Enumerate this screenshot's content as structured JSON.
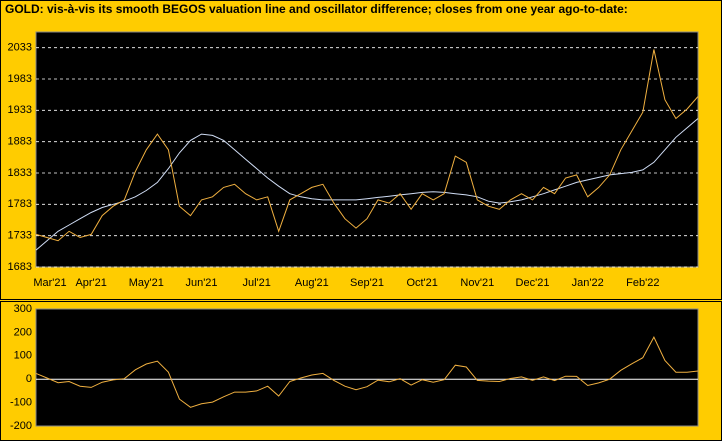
{
  "chart_data": [
    {
      "type": "line",
      "title": "GOLD:  vis-à-vis its smooth BEGOS valuation line and oscillator difference; closes from one year ago-to-date:",
      "categories": [
        "Mar'21",
        null,
        null,
        null,
        null,
        "Apr'21",
        null,
        null,
        null,
        null,
        "May'21",
        null,
        null,
        null,
        null,
        "Jun'21",
        null,
        null,
        null,
        null,
        "Jul'21",
        null,
        null,
        null,
        null,
        "Aug'21",
        null,
        null,
        null,
        null,
        "Sep'21",
        null,
        null,
        null,
        null,
        "Oct'21",
        null,
        null,
        null,
        null,
        "Nov'21",
        null,
        null,
        null,
        null,
        "Dec'21",
        null,
        null,
        null,
        null,
        "Jan'22",
        null,
        null,
        null,
        null,
        "Feb'22",
        null,
        null,
        null,
        null,
        null
      ],
      "series": [
        {
          "color": "#f0b040",
          "values": [
            1735,
            1730,
            1725,
            1740,
            1730,
            1735,
            1765,
            1780,
            1790,
            1835,
            1870,
            1895,
            1870,
            1780,
            1765,
            1790,
            1795,
            1810,
            1815,
            1800,
            1790,
            1795,
            1740,
            1790,
            1800,
            1810,
            1815,
            1785,
            1760,
            1745,
            1760,
            1790,
            1785,
            1800,
            1775,
            1800,
            1790,
            1800,
            1860,
            1850,
            1790,
            1780,
            1775,
            1790,
            1800,
            1790,
            1810,
            1800,
            1825,
            1830,
            1795,
            1810,
            1830,
            1870,
            1900,
            1930,
            2030,
            1950,
            1920,
            1935,
            1955
          ]
        },
        {
          "color": "#d0ddf5",
          "values": [
            1710,
            1725,
            1740,
            1750,
            1760,
            1770,
            1778,
            1783,
            1788,
            1795,
            1805,
            1818,
            1840,
            1865,
            1885,
            1895,
            1893,
            1885,
            1870,
            1855,
            1840,
            1825,
            1812,
            1800,
            1795,
            1792,
            1790,
            1790,
            1790,
            1790,
            1792,
            1794,
            1796,
            1798,
            1800,
            1802,
            1803,
            1802,
            1800,
            1798,
            1795,
            1788,
            1785,
            1787,
            1790,
            1795,
            1800,
            1806,
            1812,
            1818,
            1822,
            1826,
            1830,
            1832,
            1834,
            1838,
            1850,
            1870,
            1890,
            1905,
            1920
          ]
        }
      ],
      "ylim": [
        1683,
        2058
      ],
      "yticks": [
        1683,
        1733,
        1783,
        1833,
        1883,
        1933,
        1983,
        2033
      ],
      "grid": true
    },
    {
      "type": "line",
      "series": [
        {
          "color": "#f0b040",
          "values": [
            25,
            5,
            -15,
            -10,
            -30,
            -35,
            -13,
            -3,
            2,
            40,
            65,
            77,
            30,
            -85,
            -120,
            -105,
            -98,
            -75,
            -55,
            -55,
            -50,
            -30,
            -72,
            -10,
            5,
            18,
            25,
            -5,
            -30,
            -45,
            -32,
            -4,
            -11,
            2,
            -25,
            -2,
            -13,
            -2,
            60,
            52,
            -5,
            -8,
            -10,
            3,
            10,
            -5,
            10,
            -6,
            13,
            12,
            -27,
            -16,
            0,
            38,
            66,
            92,
            180,
            80,
            30,
            30,
            35
          ]
        }
      ],
      "ylim": [
        -200,
        300
      ],
      "yticks": [
        -200,
        -100,
        0,
        100,
        200,
        300
      ],
      "grid": false
    }
  ]
}
